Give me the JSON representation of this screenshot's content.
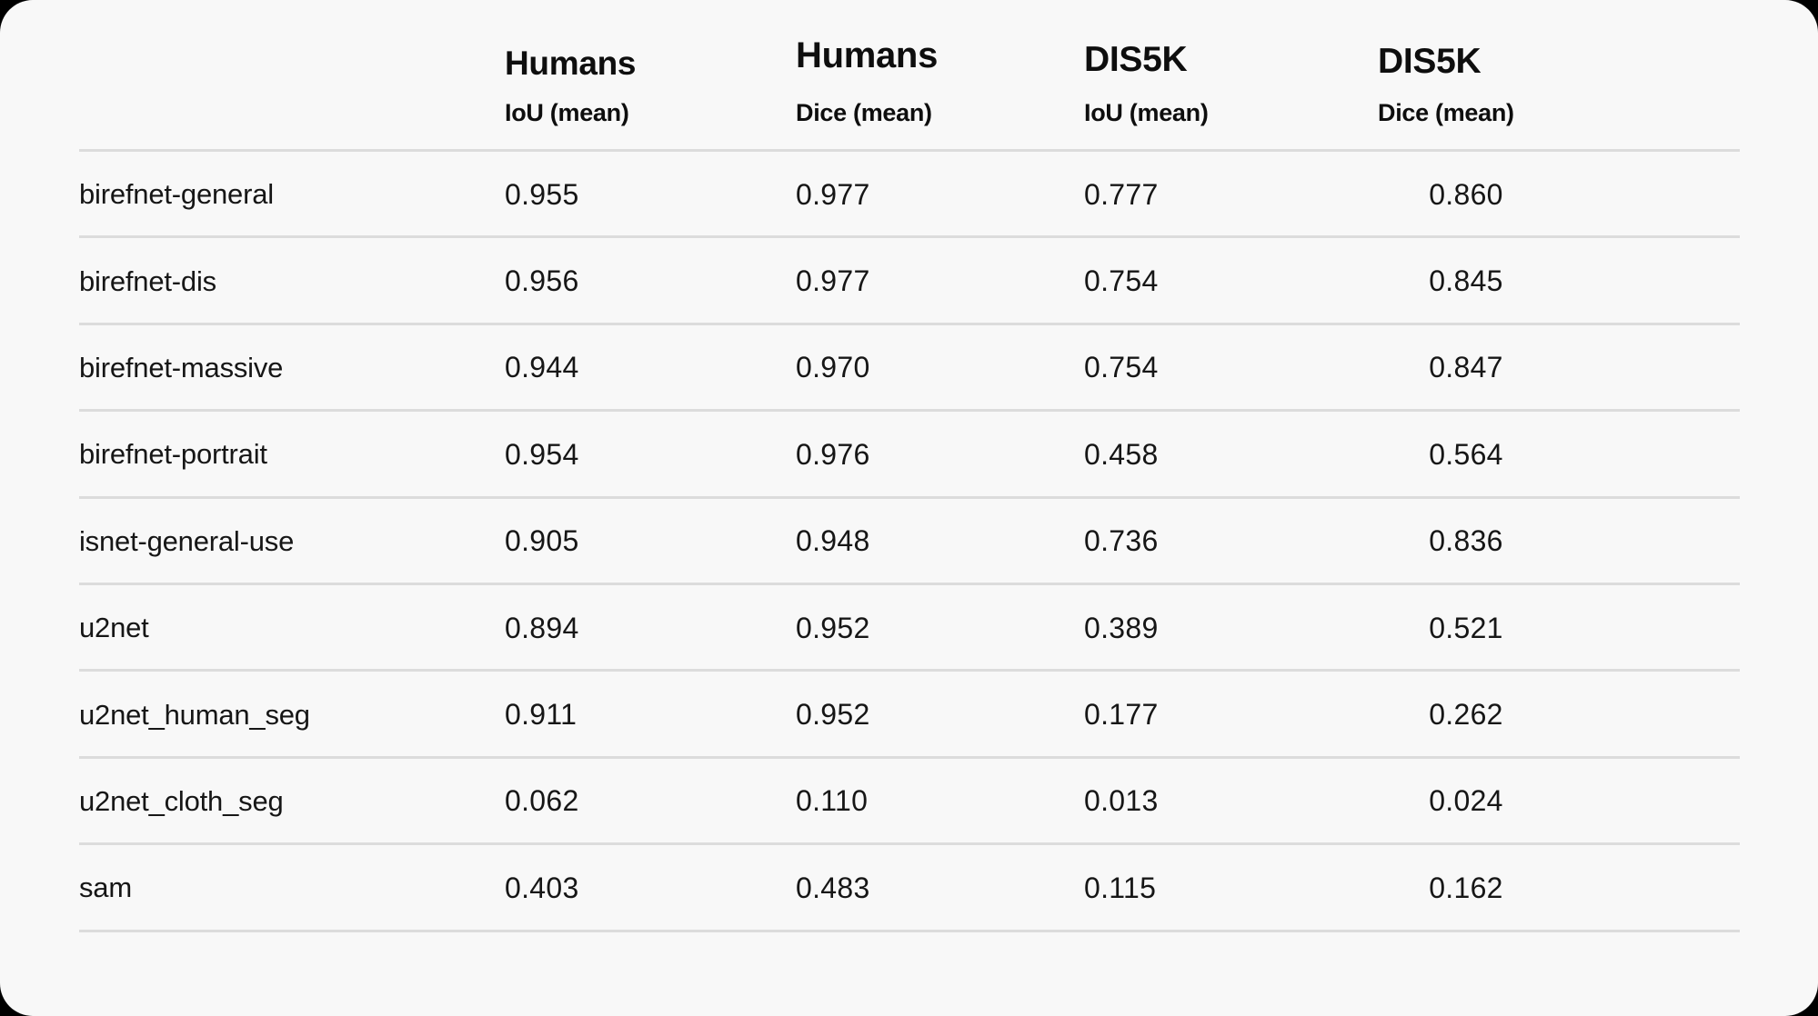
{
  "colors": {
    "page_background": "#000000",
    "card_background": "#f8f8f8",
    "divider": "#dcdcdc",
    "heading_text": "#0e0e0e",
    "body_text": "#161616"
  },
  "table": {
    "header": [
      {
        "group": "Humans",
        "metric": "IoU (mean)"
      },
      {
        "group": "Humans",
        "metric": "Dice (mean)"
      },
      {
        "group": "DIS5K",
        "metric": "IoU (mean)"
      },
      {
        "group": "DIS5K",
        "metric": "Dice (mean)"
      }
    ],
    "rows": [
      {
        "model": "birefnet-general",
        "values": [
          "0.955",
          "0.977",
          "0.777",
          "0.860"
        ]
      },
      {
        "model": "birefnet-dis",
        "values": [
          "0.956",
          "0.977",
          "0.754",
          "0.845"
        ]
      },
      {
        "model": "birefnet-massive",
        "values": [
          "0.944",
          "0.970",
          "0.754",
          "0.847"
        ]
      },
      {
        "model": "birefnet-portrait",
        "values": [
          "0.954",
          "0.976",
          "0.458",
          "0.564"
        ]
      },
      {
        "model": "isnet-general-use",
        "values": [
          "0.905",
          "0.948",
          "0.736",
          "0.836"
        ]
      },
      {
        "model": "u2net",
        "values": [
          "0.894",
          "0.952",
          "0.389",
          "0.521"
        ]
      },
      {
        "model": "u2net_human_seg",
        "values": [
          "0.911",
          "0.952",
          "0.177",
          "0.262"
        ]
      },
      {
        "model": "u2net_cloth_seg",
        "values": [
          "0.062",
          "0.110",
          "0.013",
          "0.024"
        ]
      },
      {
        "model": "sam",
        "values": [
          "0.403",
          "0.483",
          "0.115",
          "0.162"
        ]
      }
    ]
  },
  "chart_data": {
    "type": "table",
    "title": "",
    "columns": [
      "model",
      "Humans IoU (mean)",
      "Humans Dice (mean)",
      "DIS5K IoU (mean)",
      "DIS5K Dice (mean)"
    ],
    "rows": [
      [
        "birefnet-general",
        0.955,
        0.977,
        0.777,
        0.86
      ],
      [
        "birefnet-dis",
        0.956,
        0.977,
        0.754,
        0.845
      ],
      [
        "birefnet-massive",
        0.944,
        0.97,
        0.754,
        0.847
      ],
      [
        "birefnet-portrait",
        0.954,
        0.976,
        0.458,
        0.564
      ],
      [
        "isnet-general-use",
        0.905,
        0.948,
        0.736,
        0.836
      ],
      [
        "u2net",
        0.894,
        0.952,
        0.389,
        0.521
      ],
      [
        "u2net_human_seg",
        0.911,
        0.952,
        0.177,
        0.262
      ],
      [
        "u2net_cloth_seg",
        0.062,
        0.11,
        0.013,
        0.024
      ],
      [
        "sam",
        0.403,
        0.483,
        0.115,
        0.162
      ]
    ]
  }
}
